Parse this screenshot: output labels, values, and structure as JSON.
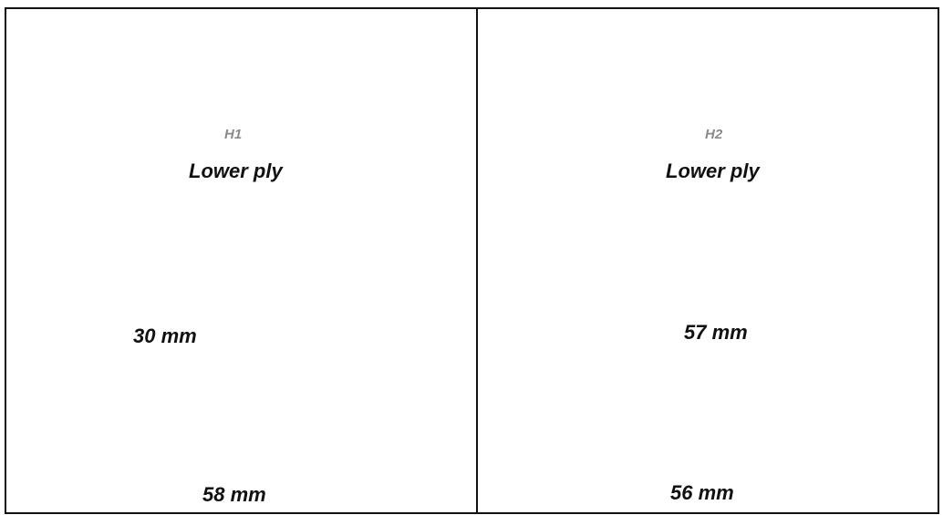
{
  "panels": [
    {
      "label": "H1",
      "title": "Lower ply",
      "photo_measure": "30 mm",
      "map_measure": "58 mm",
      "outline_style": "solid"
    },
    {
      "label": "H2",
      "title": "Lower ply",
      "photo_measure": "57 mm",
      "map_measure": "56 mm",
      "outline_style": "dashed"
    }
  ],
  "colors": {
    "map_background": "#0a2fc9",
    "map_medium": "#2fd3c8",
    "map_high": "#f2d41a",
    "map_peak": "#e8231c",
    "crack_trace": "#f2ea2e",
    "photo_dark": "#2c2e2d"
  }
}
